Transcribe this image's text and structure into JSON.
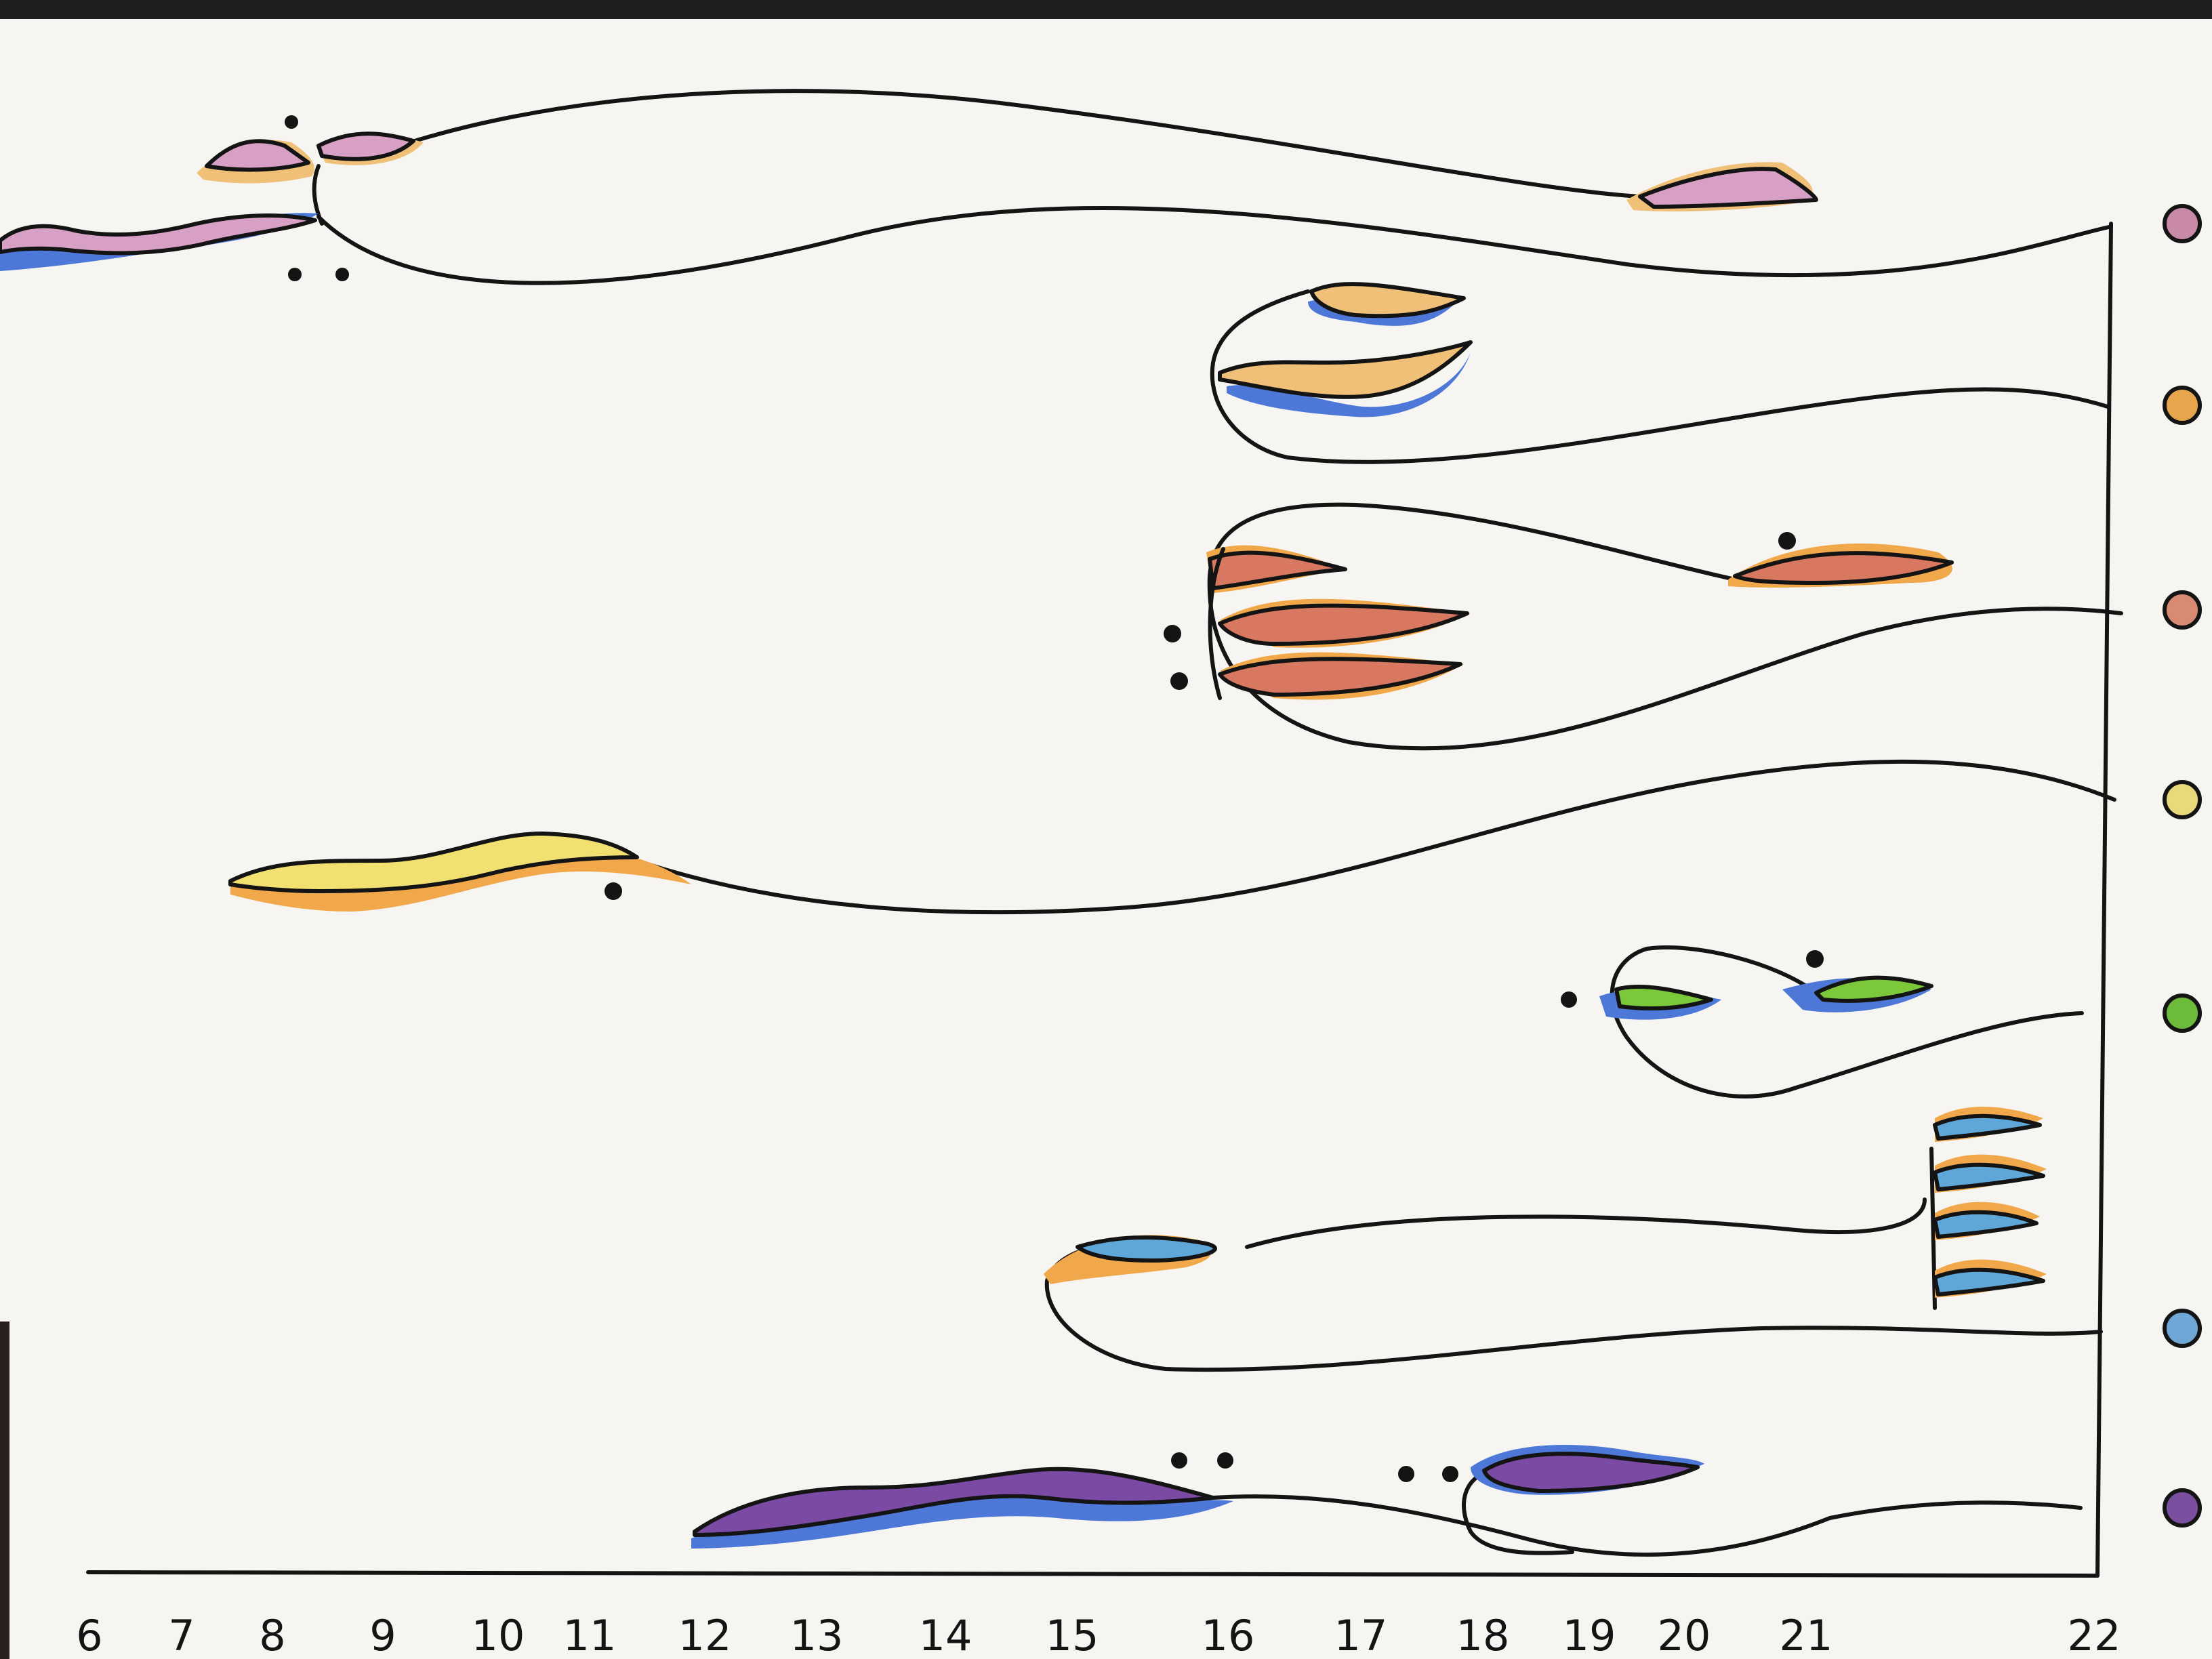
{
  "axis": {
    "ticks": [
      "6",
      "7",
      "8",
      "9",
      "10",
      "11",
      "12",
      "13",
      "14",
      "15",
      "16",
      "17",
      "18",
      "19",
      "20",
      "21",
      "22"
    ]
  },
  "legend_colors": [
    "#c98aa8",
    "#e8a64c",
    "#d98a72",
    "#e7da7a",
    "#6dbb3a",
    "#6fa7d6",
    "#7a4fa0"
  ],
  "palette": {
    "paper": "#f6f5f2",
    "ink": "#141414",
    "pink": "#d7a0c4",
    "orange": "#f0c078",
    "salmon": "#d97860",
    "yellow": "#f2e070",
    "green": "#7bc83b",
    "cyan": "#5fa7d8",
    "purple": "#7a4aa4",
    "blue_shadow": "#4d78d8",
    "orange_shadow": "#f0a84a"
  }
}
